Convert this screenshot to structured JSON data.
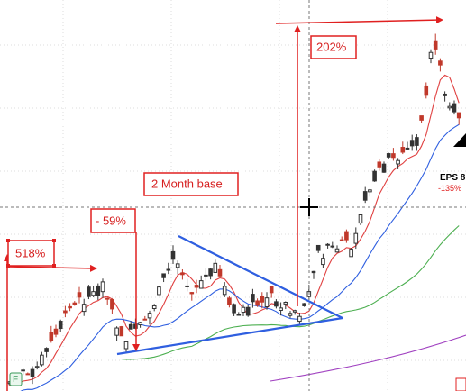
{
  "annotations": {
    "gain_left": "518%",
    "drop": "- 59%",
    "base": "2 Month base",
    "gain_right": "202%"
  },
  "eps": {
    "label": "EPS 8",
    "change": "-135%"
  },
  "icon": "F"
}
